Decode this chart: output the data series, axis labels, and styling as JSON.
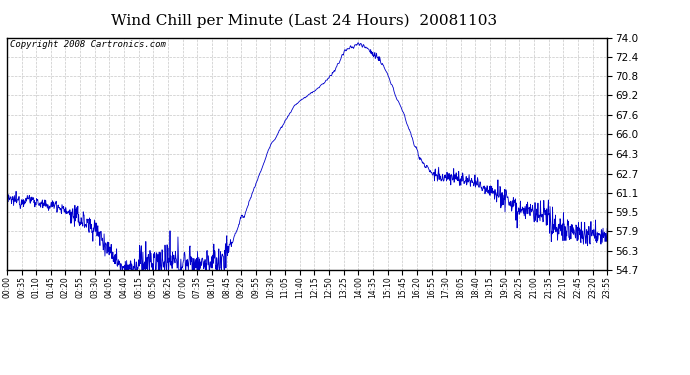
{
  "title": "Wind Chill per Minute (Last 24 Hours)  20081103",
  "copyright_text": "Copyright 2008 Cartronics.com",
  "y_min": 54.7,
  "y_max": 74.0,
  "y_ticks": [
    54.7,
    56.3,
    57.9,
    59.5,
    61.1,
    62.7,
    64.3,
    66.0,
    67.6,
    69.2,
    70.8,
    72.4,
    74.0
  ],
  "x_tick_labels": [
    "00:00",
    "00:35",
    "01:10",
    "01:45",
    "02:20",
    "02:55",
    "03:30",
    "04:05",
    "04:40",
    "05:15",
    "05:50",
    "06:25",
    "07:00",
    "07:35",
    "08:10",
    "08:45",
    "09:20",
    "09:55",
    "10:30",
    "11:05",
    "11:40",
    "12:15",
    "12:50",
    "13:25",
    "14:00",
    "14:35",
    "15:10",
    "15:45",
    "16:20",
    "16:55",
    "17:30",
    "18:05",
    "18:40",
    "19:15",
    "19:50",
    "20:25",
    "21:00",
    "21:35",
    "22:10",
    "22:45",
    "23:20",
    "23:55"
  ],
  "line_color": "#0000cc",
  "background_color": "#ffffff",
  "grid_color": "#c8c8c8",
  "title_fontsize": 11,
  "copyright_fontsize": 6.5
}
